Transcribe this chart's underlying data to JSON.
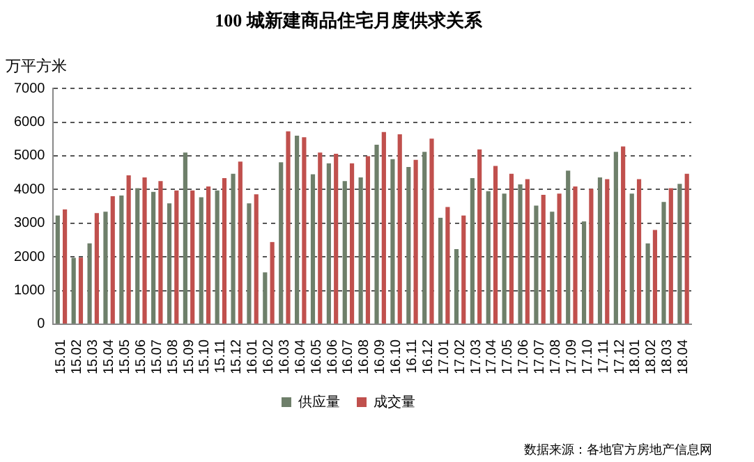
{
  "chart_data": {
    "type": "bar",
    "title": "100 城新建商品住宅月度供求关系",
    "ylabel": "万平方米",
    "categories": [
      "15.01",
      "15.02",
      "15.03",
      "15.04",
      "15.05",
      "15.06",
      "15.07",
      "15.08",
      "15.09",
      "15.10",
      "15.11",
      "15.12",
      "16.01",
      "16.02",
      "16.03",
      "16.04",
      "16.05",
      "16.06",
      "16.07",
      "16.08",
      "16.09",
      "16.10",
      "16.11",
      "16.12",
      "17.01",
      "17.02",
      "17.03",
      "17.04",
      "17.05",
      "17.06",
      "17.07",
      "17.08",
      "17.09",
      "17.10",
      "17.11",
      "17.12",
      "18.01",
      "18.02",
      "18.03",
      "18.04"
    ],
    "series": [
      {
        "name": "供应量",
        "color": "#6e7f6a",
        "values": [
          3230,
          1970,
          2400,
          3340,
          3820,
          4040,
          3930,
          3590,
          5100,
          3770,
          3970,
          4470,
          3590,
          1540,
          4810,
          5600,
          4450,
          4780,
          4250,
          4360,
          5330,
          4900,
          4670,
          5120,
          3160,
          2230,
          4340,
          3950,
          3880,
          4150,
          3520,
          3340,
          4560,
          3050,
          4360,
          5120,
          3880,
          2400,
          3630,
          4170
        ]
      },
      {
        "name": "成交量",
        "color": "#c0504d",
        "values": [
          3410,
          1980,
          3300,
          3800,
          4420,
          4360,
          4250,
          3970,
          3970,
          4090,
          4340,
          4830,
          3860,
          2440,
          5730,
          5550,
          5100,
          5060,
          4780,
          4990,
          5710,
          5640,
          4880,
          5510,
          3480,
          3230,
          5190,
          4700,
          4470,
          4310,
          3840,
          3880,
          4090,
          4020,
          4310,
          5280,
          4310,
          2800,
          4040,
          4470
        ]
      }
    ],
    "ylim": [
      0,
      7000
    ],
    "yticks": [
      0,
      1000,
      2000,
      3000,
      4000,
      5000,
      6000,
      7000
    ],
    "grid": "y",
    "legend": "bottom",
    "annotations": [
      "数据来源：各地官方房地产信息网"
    ]
  }
}
